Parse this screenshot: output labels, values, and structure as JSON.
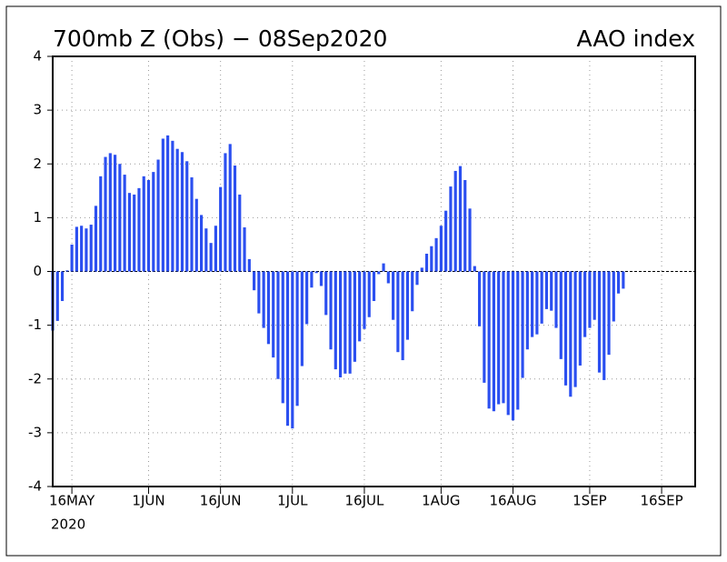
{
  "chart_data": {
    "type": "bar",
    "title": "700mb Z (Obs) − 08Sep2020",
    "subtitle": "AAO index",
    "x_year_label": "2020",
    "color": "#2b4ff0",
    "grid": true,
    "x": [
      "2020-05-12",
      "2020-05-13",
      "2020-05-14",
      "2020-05-15",
      "2020-05-16",
      "2020-05-17",
      "2020-05-18",
      "2020-05-19",
      "2020-05-20",
      "2020-05-21",
      "2020-05-22",
      "2020-05-23",
      "2020-05-24",
      "2020-05-25",
      "2020-05-26",
      "2020-05-27",
      "2020-05-28",
      "2020-05-29",
      "2020-05-30",
      "2020-05-31",
      "2020-06-01",
      "2020-06-02",
      "2020-06-03",
      "2020-06-04",
      "2020-06-05",
      "2020-06-06",
      "2020-06-07",
      "2020-06-08",
      "2020-06-09",
      "2020-06-10",
      "2020-06-11",
      "2020-06-12",
      "2020-06-13",
      "2020-06-14",
      "2020-06-15",
      "2020-06-16",
      "2020-06-17",
      "2020-06-18",
      "2020-06-19",
      "2020-06-20",
      "2020-06-21",
      "2020-06-22",
      "2020-06-23",
      "2020-06-24",
      "2020-06-25",
      "2020-06-26",
      "2020-06-27",
      "2020-06-28",
      "2020-06-29",
      "2020-06-30",
      "2020-07-01",
      "2020-07-02",
      "2020-07-03",
      "2020-07-04",
      "2020-07-05",
      "2020-07-06",
      "2020-07-07",
      "2020-07-08",
      "2020-07-09",
      "2020-07-10",
      "2020-07-11",
      "2020-07-12",
      "2020-07-13",
      "2020-07-14",
      "2020-07-15",
      "2020-07-16",
      "2020-07-17",
      "2020-07-18",
      "2020-07-19",
      "2020-07-20",
      "2020-07-21",
      "2020-07-22",
      "2020-07-23",
      "2020-07-24",
      "2020-07-25",
      "2020-07-26",
      "2020-07-27",
      "2020-07-28",
      "2020-07-29",
      "2020-07-30",
      "2020-07-31",
      "2020-08-01",
      "2020-08-02",
      "2020-08-03",
      "2020-08-04",
      "2020-08-05",
      "2020-08-06",
      "2020-08-07",
      "2020-08-08",
      "2020-08-09",
      "2020-08-10",
      "2020-08-11",
      "2020-08-12",
      "2020-08-13",
      "2020-08-14",
      "2020-08-15",
      "2020-08-16",
      "2020-08-17",
      "2020-08-18",
      "2020-08-19",
      "2020-08-20",
      "2020-08-21",
      "2020-08-22",
      "2020-08-23",
      "2020-08-24",
      "2020-08-25",
      "2020-08-26",
      "2020-08-27",
      "2020-08-28",
      "2020-08-29",
      "2020-08-30",
      "2020-08-31",
      "2020-09-01",
      "2020-09-02",
      "2020-09-03",
      "2020-09-04",
      "2020-09-05",
      "2020-09-06",
      "2020-09-07",
      "2020-09-08"
    ],
    "values": [
      -1.1,
      -0.92,
      -0.55,
      0.02,
      0.5,
      0.83,
      0.85,
      0.8,
      0.87,
      1.22,
      1.77,
      2.13,
      2.2,
      2.17,
      2.0,
      1.8,
      1.46,
      1.43,
      1.55,
      1.77,
      1.7,
      1.85,
      2.08,
      2.47,
      2.53,
      2.43,
      2.28,
      2.22,
      2.05,
      1.75,
      1.35,
      1.05,
      0.8,
      0.53,
      0.85,
      1.57,
      2.2,
      2.37,
      1.97,
      1.43,
      0.82,
      0.23,
      -0.35,
      -0.78,
      -1.05,
      -1.35,
      -1.6,
      -2.0,
      -2.45,
      -2.87,
      -2.92,
      -2.5,
      -1.76,
      -0.98,
      -0.3,
      -0.03,
      -0.27,
      -0.81,
      -1.45,
      -1.82,
      -1.97,
      -1.9,
      -1.9,
      -1.68,
      -1.3,
      -1.07,
      -0.85,
      -0.55,
      -0.05,
      0.15,
      -0.22,
      -0.9,
      -1.5,
      -1.65,
      -1.27,
      -0.74,
      -0.25,
      0.07,
      0.33,
      0.47,
      0.62,
      0.85,
      1.13,
      1.58,
      1.87,
      1.96,
      1.7,
      1.17,
      0.1,
      -1.02,
      -2.07,
      -2.55,
      -2.6,
      -2.47,
      -2.45,
      -2.67,
      -2.77,
      -2.57,
      -1.98,
      -1.45,
      -1.22,
      -1.17,
      -0.97,
      -0.7,
      -0.73,
      -1.05,
      -1.63,
      -2.12,
      -2.33,
      -2.15,
      -1.75,
      -1.22,
      -1.05,
      -0.9,
      -1.88,
      -2.02,
      -1.55,
      -0.93,
      -0.41,
      -0.32
    ],
    "xlim": [
      "2020-05-12",
      "2020-09-23"
    ],
    "xticks": [
      {
        "value": "2020-05-16",
        "label": "16MAY"
      },
      {
        "value": "2020-06-01",
        "label": "1JUN"
      },
      {
        "value": "2020-06-16",
        "label": "16JUN"
      },
      {
        "value": "2020-07-01",
        "label": "1JUL"
      },
      {
        "value": "2020-07-16",
        "label": "16JUL"
      },
      {
        "value": "2020-08-01",
        "label": "1AUG"
      },
      {
        "value": "2020-08-16",
        "label": "16AUG"
      },
      {
        "value": "2020-09-01",
        "label": "1SEP"
      },
      {
        "value": "2020-09-16",
        "label": "16SEP"
      }
    ],
    "ylim": [
      -4,
      4
    ],
    "yticks": [
      -4,
      -3,
      -2,
      -1,
      0,
      1,
      2,
      3,
      4
    ]
  }
}
